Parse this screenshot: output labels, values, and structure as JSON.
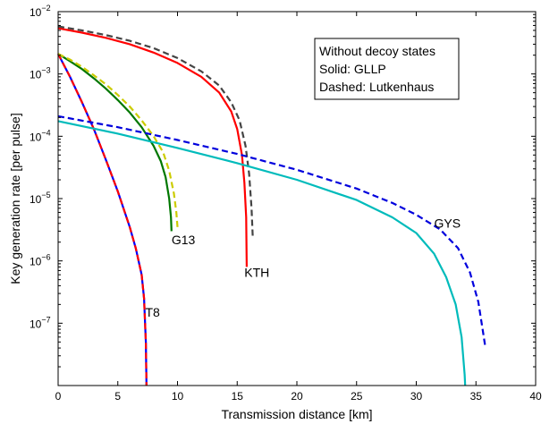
{
  "chart_data": {
    "type": "line",
    "xlabel": "Transmission distance [km]",
    "ylabel": "Key generation rate [per pulse]",
    "xlim": [
      0,
      40
    ],
    "ylim_exp": [
      -8,
      -2
    ],
    "y_scale": "log",
    "grid": false,
    "x_ticks": [
      0,
      5,
      10,
      15,
      20,
      25,
      30,
      35,
      40
    ],
    "y_tick_labels": [
      {
        "exp": -2,
        "base": "10",
        "sup": "−2"
      },
      {
        "exp": -3,
        "base": "10",
        "sup": "−3"
      },
      {
        "exp": -4,
        "base": "10",
        "sup": "−4"
      },
      {
        "exp": -5,
        "base": "10",
        "sup": "−5"
      },
      {
        "exp": -6,
        "base": "10",
        "sup": "−6"
      },
      {
        "exp": -7,
        "base": "10",
        "sup": "−7"
      }
    ],
    "legend": {
      "placement": "top-right",
      "lines": [
        "Without decoy states",
        "Solid: GLLP",
        "Dashed: Lutkenhaus"
      ]
    },
    "curve_labels": [
      {
        "text": "T8",
        "x": 7.3,
        "y": 1.5e-07
      },
      {
        "text": "G13",
        "x": 9.5,
        "y": 2.2e-06
      },
      {
        "text": "KTH",
        "x": 15.6,
        "y": 6.5e-07
      },
      {
        "text": "GYS",
        "x": 31.5,
        "y": 4e-06
      }
    ],
    "series": [
      {
        "id": "t8-solid",
        "color": "#0000ff",
        "style": "solid",
        "points": [
          [
            0,
            0.0021
          ],
          [
            1,
            0.0009
          ],
          [
            2,
            0.00035
          ],
          [
            3,
            0.00013
          ],
          [
            4,
            4.2e-05
          ],
          [
            5,
            1.3e-05
          ],
          [
            6,
            3.5e-06
          ],
          [
            6.5,
            1.6e-06
          ],
          [
            7,
            6e-07
          ],
          [
            7.2,
            2.5e-07
          ],
          [
            7.35,
            5e-08
          ],
          [
            7.4,
            1e-08
          ]
        ]
      },
      {
        "id": "t8-dashed",
        "color": "#ff0000",
        "style": "dashed",
        "points": [
          [
            0,
            0.0021
          ],
          [
            1,
            0.0009
          ],
          [
            2,
            0.00035
          ],
          [
            3,
            0.00013
          ],
          [
            4,
            4.2e-05
          ],
          [
            5,
            1.3e-05
          ],
          [
            6,
            3.5e-06
          ],
          [
            6.5,
            1.6e-06
          ],
          [
            7,
            6e-07
          ],
          [
            7.2,
            2.5e-07
          ],
          [
            7.35,
            5e-08
          ],
          [
            7.4,
            1e-08
          ]
        ]
      },
      {
        "id": "g13-solid",
        "color": "#007700",
        "style": "solid",
        "points": [
          [
            0,
            0.0021
          ],
          [
            1,
            0.0016
          ],
          [
            2,
            0.0012
          ],
          [
            3,
            0.00085
          ],
          [
            4,
            0.00058
          ],
          [
            5,
            0.00038
          ],
          [
            6,
            0.00024
          ],
          [
            7,
            0.00014
          ],
          [
            8,
            7e-05
          ],
          [
            8.6,
            4e-05
          ],
          [
            9,
            2.2e-05
          ],
          [
            9.3,
            1e-05
          ],
          [
            9.45,
            5e-06
          ],
          [
            9.5,
            3e-06
          ]
        ]
      },
      {
        "id": "g13-dashed",
        "color": "#cccc00",
        "style": "dashed",
        "points": [
          [
            0,
            0.0021
          ],
          [
            1,
            0.0017
          ],
          [
            2,
            0.0013
          ],
          [
            3,
            0.00095
          ],
          [
            4,
            0.00068
          ],
          [
            5,
            0.00046
          ],
          [
            6,
            0.0003
          ],
          [
            7,
            0.00018
          ],
          [
            8,
            0.0001
          ],
          [
            8.8,
            5.5e-05
          ],
          [
            9.3,
            2.8e-05
          ],
          [
            9.7,
            1.2e-05
          ],
          [
            9.9,
            6e-06
          ],
          [
            10,
            3.5e-06
          ]
        ]
      },
      {
        "id": "kth-solid",
        "color": "#ff0000",
        "style": "solid",
        "points": [
          [
            0,
            0.0054
          ],
          [
            2,
            0.0046
          ],
          [
            4,
            0.0038
          ],
          [
            6,
            0.003
          ],
          [
            8,
            0.0022
          ],
          [
            10,
            0.0015
          ],
          [
            12,
            0.0009
          ],
          [
            13.5,
            0.0005
          ],
          [
            14.5,
            0.00025
          ],
          [
            15,
            0.00013
          ],
          [
            15.4,
            5e-05
          ],
          [
            15.6,
            1.8e-05
          ],
          [
            15.75,
            5e-06
          ],
          [
            15.8,
            8e-07
          ]
        ]
      },
      {
        "id": "kth-dashed",
        "color": "#444444",
        "style": "dashed",
        "points": [
          [
            0,
            0.0058
          ],
          [
            2,
            0.005
          ],
          [
            4,
            0.0042
          ],
          [
            6,
            0.0034
          ],
          [
            8,
            0.0026
          ],
          [
            10,
            0.0018
          ],
          [
            12,
            0.0011
          ],
          [
            13.5,
            0.00065
          ],
          [
            14.5,
            0.00035
          ],
          [
            15.2,
            0.00018
          ],
          [
            15.7,
            7e-05
          ],
          [
            16,
            2.5e-05
          ],
          [
            16.2,
            7e-06
          ],
          [
            16.3,
            2.5e-06
          ]
        ]
      },
      {
        "id": "gys-solid",
        "color": "#00bbbb",
        "style": "solid",
        "points": [
          [
            0,
            0.000175
          ],
          [
            5,
            0.00011
          ],
          [
            10,
            6.5e-05
          ],
          [
            15,
            3.7e-05
          ],
          [
            20,
            2e-05
          ],
          [
            25,
            9.5e-06
          ],
          [
            28,
            5e-06
          ],
          [
            30,
            2.8e-06
          ],
          [
            31.5,
            1.3e-06
          ],
          [
            32.5,
            5.5e-07
          ],
          [
            33.3,
            2e-07
          ],
          [
            33.8,
            6e-08
          ],
          [
            34.05,
            1.5e-08
          ],
          [
            34.1,
            1e-08
          ]
        ]
      },
      {
        "id": "gys-dashed",
        "color": "#0000dd",
        "style": "dashed",
        "points": [
          [
            0,
            0.00021
          ],
          [
            5,
            0.00014
          ],
          [
            10,
            8.7e-05
          ],
          [
            15,
            5.2e-05
          ],
          [
            20,
            2.9e-05
          ],
          [
            25,
            1.45e-05
          ],
          [
            28,
            8.5e-06
          ],
          [
            30,
            5.5e-06
          ],
          [
            32,
            3.2e-06
          ],
          [
            33.5,
            1.6e-06
          ],
          [
            34.5,
            6.5e-07
          ],
          [
            35.2,
            2.2e-07
          ],
          [
            35.6,
            7e-08
          ],
          [
            35.8,
            4e-08
          ]
        ]
      }
    ]
  }
}
